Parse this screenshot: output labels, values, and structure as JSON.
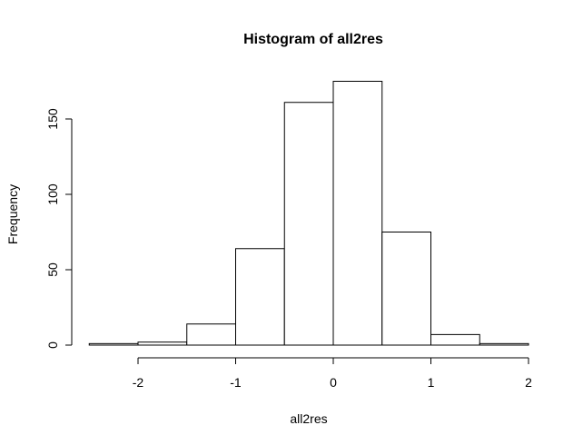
{
  "chart_data": {
    "type": "bar",
    "title": "Histogram of all2res",
    "xlabel": "all2res",
    "ylabel": "Frequency",
    "bin_edges": [
      -2.5,
      -2.0,
      -1.5,
      -1.0,
      -0.5,
      0.0,
      0.5,
      1.0,
      1.5,
      2.0
    ],
    "values": [
      1,
      2,
      14,
      64,
      161,
      175,
      75,
      7,
      1
    ],
    "xlim": [
      -2.5,
      2.0
    ],
    "ylim": [
      0,
      175
    ],
    "x_ticks": [
      -2,
      -1,
      0,
      1,
      2
    ],
    "y_ticks": [
      0,
      50,
      100,
      150
    ],
    "grid": false
  }
}
